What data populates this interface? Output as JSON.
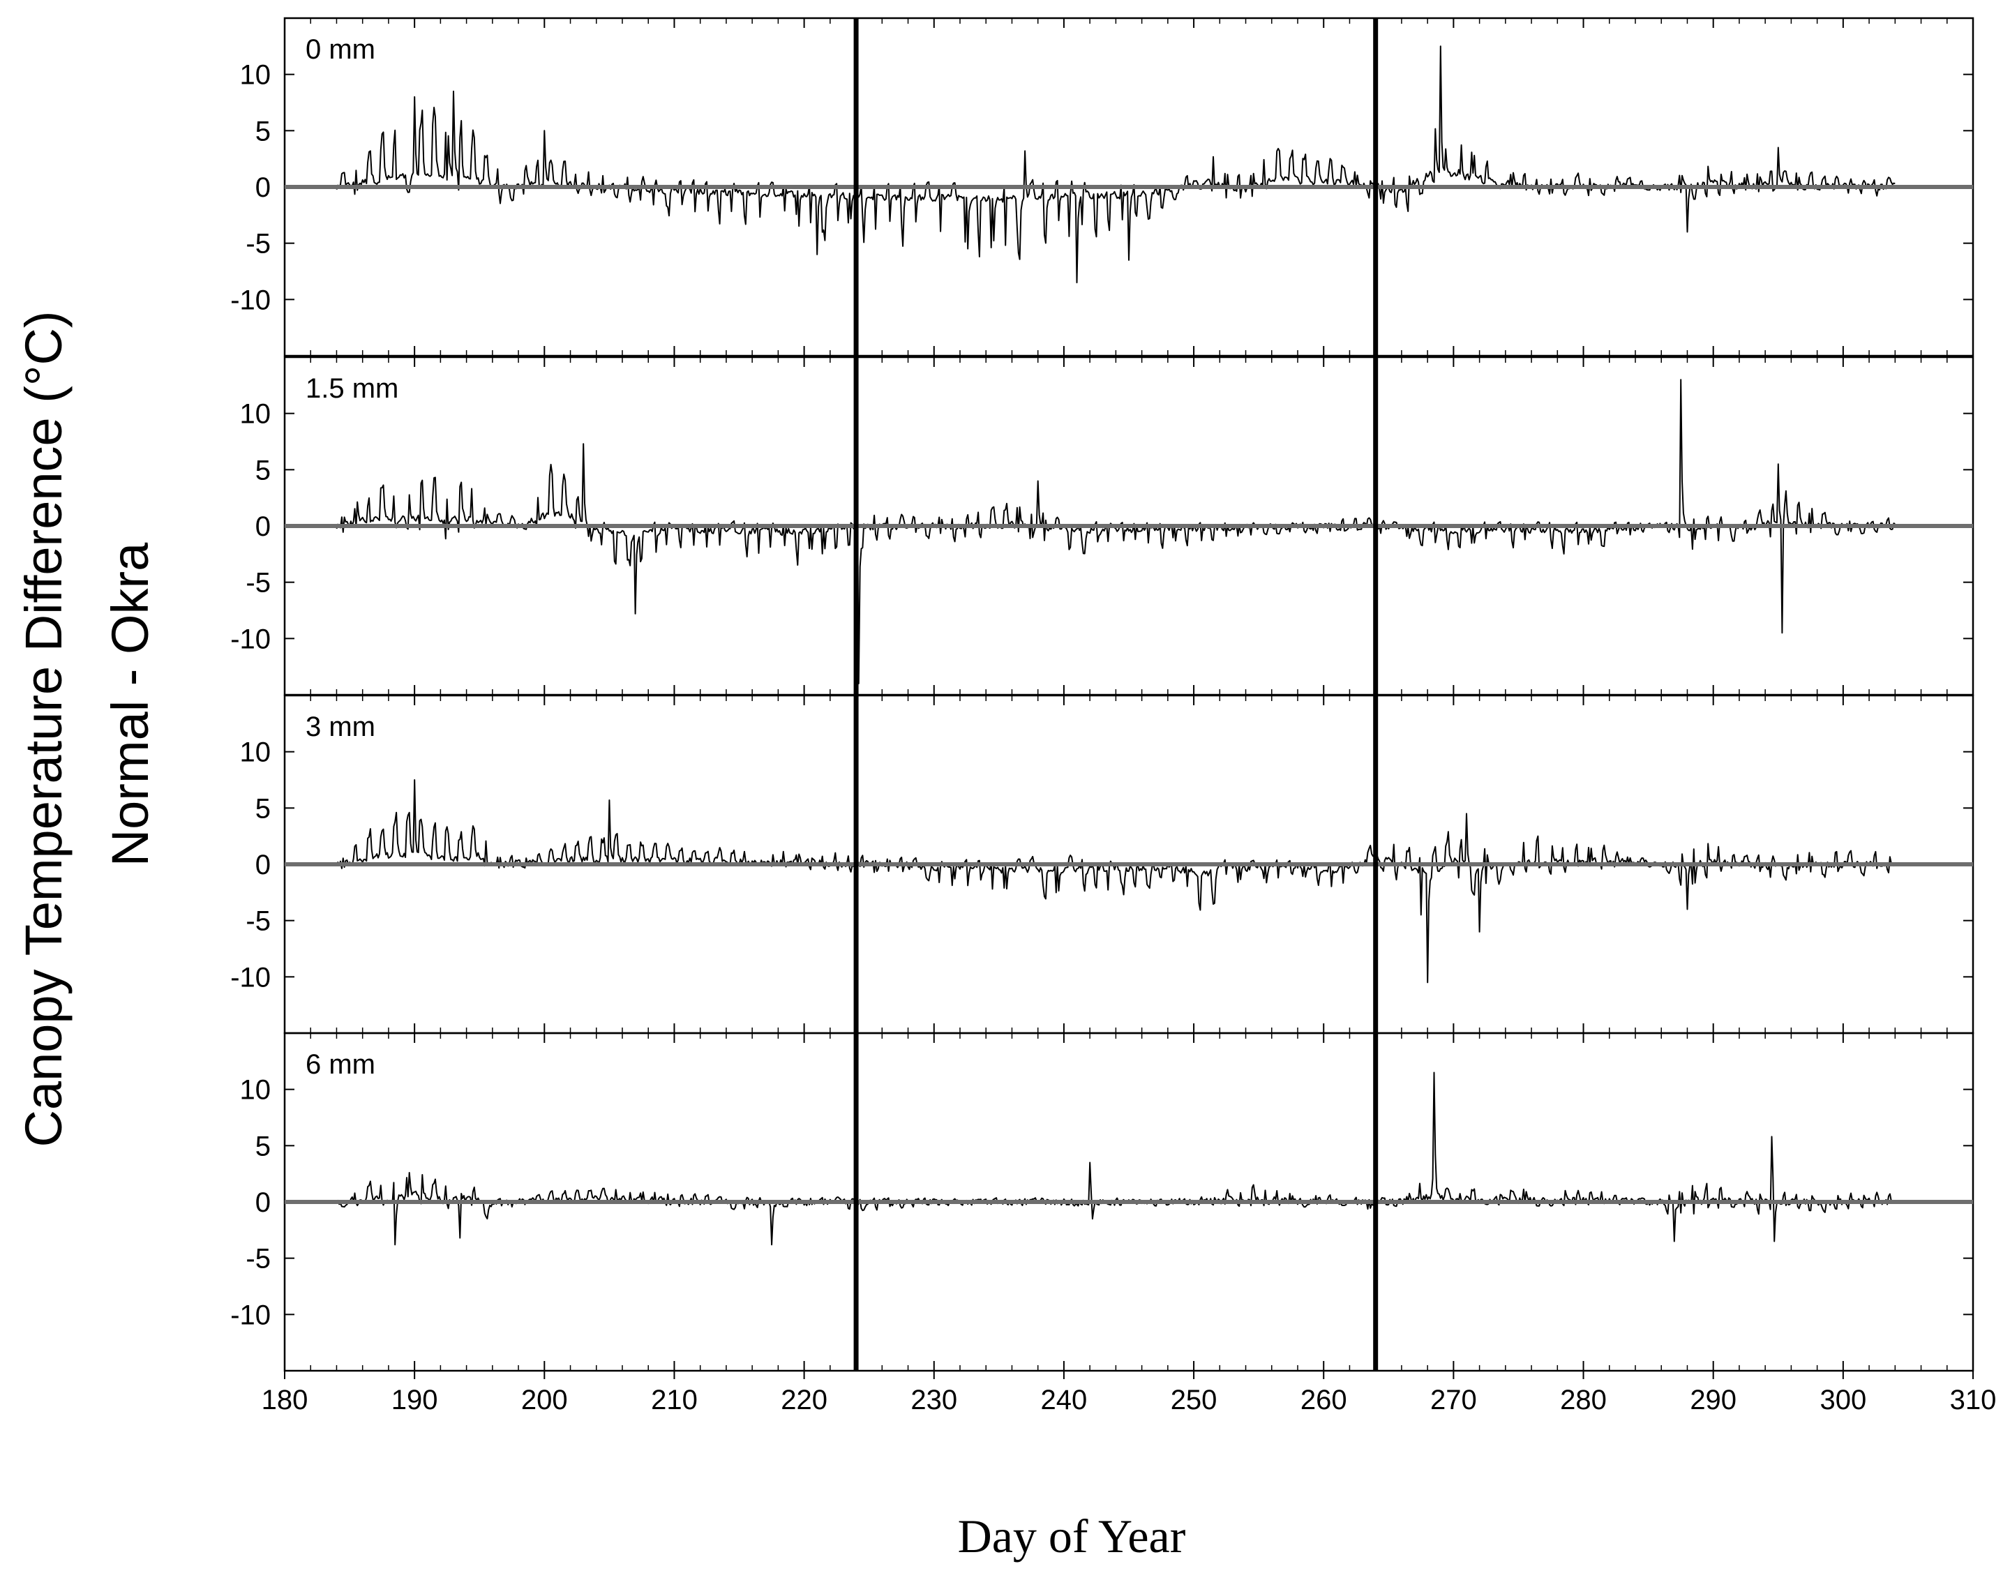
{
  "chart_data": {
    "type": "line",
    "ylabel_line1": "Canopy Temperature Difference (°C)",
    "ylabel_line2": "Normal - Okra",
    "xlabel": "Day of Year",
    "xlim": [
      180,
      310
    ],
    "ylim": [
      -15,
      15
    ],
    "x_ticks": [
      "180",
      "190",
      "200",
      "210",
      "220",
      "230",
      "240",
      "250",
      "260",
      "270",
      "280",
      "290",
      "300",
      "310"
    ],
    "y_ticks": [
      "10",
      "5",
      "0",
      "-5",
      "-10"
    ],
    "vertical_markers": [
      224,
      264
    ],
    "zero_line_color": "#6e6e6e",
    "series_color": "#000000",
    "panels": [
      {
        "label": "0 mm",
        "envelope": [
          [
            184,
            1,
            -2
          ],
          [
            186,
            4,
            -1
          ],
          [
            188,
            6,
            -1
          ],
          [
            190,
            7,
            -0.5
          ],
          [
            192,
            8.5,
            -1
          ],
          [
            194,
            7,
            -1
          ],
          [
            196,
            2,
            -2
          ],
          [
            200,
            3,
            -1
          ],
          [
            205,
            1.5,
            -1
          ],
          [
            210,
            1,
            -3
          ],
          [
            215,
            0.5,
            -4
          ],
          [
            220,
            0.5,
            -5
          ],
          [
            225,
            0.5,
            -6
          ],
          [
            230,
            0.5,
            -7
          ],
          [
            235,
            0.5,
            -7.5
          ],
          [
            240,
            1,
            -6
          ],
          [
            245,
            0.5,
            -5
          ],
          [
            249,
            0.3,
            -1
          ],
          [
            251,
            4.5,
            0
          ],
          [
            252,
            3,
            -2
          ],
          [
            254,
            1,
            -2
          ],
          [
            256,
            4.5,
            0
          ],
          [
            259,
            3.5,
            0
          ],
          [
            262,
            2.5,
            0
          ],
          [
            264,
            1.5,
            -1.5
          ],
          [
            266,
            1,
            -3.5
          ],
          [
            268,
            8,
            0
          ],
          [
            270,
            5.5,
            2
          ],
          [
            273,
            3,
            0
          ],
          [
            276,
            1,
            -1
          ],
          [
            280,
            1.5,
            -1
          ],
          [
            284,
            1,
            -0.5
          ],
          [
            286,
            0,
            0
          ],
          [
            288,
            2,
            -1.5
          ],
          [
            290,
            3,
            -1
          ],
          [
            292,
            1.5,
            -1
          ],
          [
            295,
            2,
            -1
          ],
          [
            300,
            1,
            -1
          ],
          [
            304,
            1,
            -1
          ]
        ],
        "spikes": [
          [
            190,
            8
          ],
          [
            193,
            8.5
          ],
          [
            200,
            5
          ],
          [
            221,
            -6
          ],
          [
            237,
            3.2
          ],
          [
            241,
            -8.5
          ],
          [
            245,
            -6.5
          ],
          [
            269,
            12.5
          ],
          [
            288,
            -4
          ],
          [
            295,
            3.5
          ]
        ]
      },
      {
        "label": "1.5 mm",
        "envelope": [
          [
            184,
            0.5,
            -1.5
          ],
          [
            186,
            3.5,
            -0.5
          ],
          [
            188,
            5,
            -0.5
          ],
          [
            190,
            5.5,
            -0.5
          ],
          [
            192,
            5,
            -2
          ],
          [
            194,
            5,
            -0.5
          ],
          [
            196,
            1.5,
            -0.5
          ],
          [
            198,
            1,
            -0.5
          ],
          [
            200,
            6,
            0
          ],
          [
            202,
            6.5,
            0
          ],
          [
            203,
            0.5,
            -1
          ],
          [
            205,
            0.5,
            -4
          ],
          [
            207,
            0.5,
            -5
          ],
          [
            210,
            0.5,
            -2
          ],
          [
            215,
            0.5,
            -3.5
          ],
          [
            220,
            0.5,
            -4
          ],
          [
            224,
            1.5,
            -2
          ],
          [
            230,
            1,
            -1.5
          ],
          [
            237,
            2.5,
            -2
          ],
          [
            240,
            0.5,
            -3
          ],
          [
            245,
            0.5,
            -2.5
          ],
          [
            250,
            0.5,
            -2
          ],
          [
            255,
            0.5,
            -1
          ],
          [
            260,
            0.5,
            -1
          ],
          [
            263,
            1,
            -1
          ],
          [
            266,
            0.3,
            -1.5
          ],
          [
            270,
            0.5,
            -2.5
          ],
          [
            275,
            0.5,
            -2.5
          ],
          [
            280,
            0.5,
            -3
          ],
          [
            284,
            0.5,
            -1
          ],
          [
            286,
            0,
            0
          ],
          [
            288,
            2,
            -3
          ],
          [
            291,
            1,
            -2
          ],
          [
            293,
            0.5,
            -1
          ],
          [
            295,
            4,
            -2
          ],
          [
            300,
            0.8,
            -1
          ],
          [
            304,
            0.8,
            -0.5
          ]
        ],
        "spikes": [
          [
            203,
            7.3
          ],
          [
            207,
            -7.8
          ],
          [
            224,
            11
          ],
          [
            224.2,
            -14
          ],
          [
            238,
            4
          ],
          [
            287.5,
            13
          ],
          [
            295,
            5.5
          ],
          [
            295.3,
            -9.5
          ]
        ]
      },
      {
        "label": "3 mm",
        "envelope": [
          [
            184,
            0.5,
            -1
          ],
          [
            186,
            3.5,
            0
          ],
          [
            188,
            5,
            0
          ],
          [
            190,
            5,
            0
          ],
          [
            192,
            4,
            0
          ],
          [
            194,
            3.5,
            0
          ],
          [
            195,
            5,
            0
          ],
          [
            196,
            1,
            -1
          ],
          [
            198,
            1,
            -0.5
          ],
          [
            200,
            1.5,
            0
          ],
          [
            203,
            2.5,
            0
          ],
          [
            205,
            3,
            0
          ],
          [
            210,
            2,
            0
          ],
          [
            215,
            1.5,
            0
          ],
          [
            220,
            1.5,
            -0.5
          ],
          [
            225,
            1,
            -1
          ],
          [
            230,
            0.5,
            -2
          ],
          [
            235,
            0.5,
            -3.5
          ],
          [
            240,
            1,
            -3.5
          ],
          [
            245,
            0.5,
            -3
          ],
          [
            248,
            0,
            -1.5
          ],
          [
            251,
            0,
            -6
          ],
          [
            252,
            0.5,
            -2
          ],
          [
            255,
            0.5,
            -2.5
          ],
          [
            258,
            0.5,
            -1
          ],
          [
            261,
            0,
            -3.5
          ],
          [
            263,
            1,
            0
          ],
          [
            264,
            4,
            0
          ],
          [
            266,
            2,
            -2.5
          ],
          [
            268,
            1,
            -8
          ],
          [
            270,
            4,
            -2
          ],
          [
            272,
            2,
            -5
          ],
          [
            274,
            2.5,
            -1
          ],
          [
            277,
            3,
            -1.5
          ],
          [
            280,
            2.5,
            -1
          ],
          [
            284,
            1,
            0
          ],
          [
            286,
            0,
            0
          ],
          [
            288,
            3,
            -4
          ],
          [
            290,
            3,
            -1
          ],
          [
            292,
            1,
            -0.5
          ],
          [
            294,
            1,
            -2
          ],
          [
            297,
            1.5,
            -1.5
          ],
          [
            300,
            1.5,
            -1.5
          ],
          [
            304,
            1.5,
            -1
          ]
        ],
        "spikes": [
          [
            190,
            7.5
          ],
          [
            205,
            5.7
          ],
          [
            268,
            -10.5
          ],
          [
            271,
            4.5
          ],
          [
            272,
            -6
          ],
          [
            288,
            -4
          ]
        ]
      },
      {
        "label": "6 mm",
        "envelope": [
          [
            184,
            0.5,
            -0.5
          ],
          [
            186,
            2,
            -0.5
          ],
          [
            188,
            2,
            -0.5
          ],
          [
            190,
            4.5,
            0
          ],
          [
            192,
            2,
            -1
          ],
          [
            194,
            2.5,
            -0.5
          ],
          [
            196,
            0.5,
            -2
          ],
          [
            198,
            0,
            -0.5
          ],
          [
            200,
            1,
            0
          ],
          [
            205,
            1.5,
            0
          ],
          [
            210,
            1,
            -0.5
          ],
          [
            215,
            0.5,
            -1
          ],
          [
            220,
            0.5,
            -0.5
          ],
          [
            225,
            0.5,
            -1
          ],
          [
            230,
            0.3,
            -0.3
          ],
          [
            240,
            0.3,
            -0.3
          ],
          [
            250,
            0.3,
            -0.3
          ],
          [
            254,
            2,
            -0.5
          ],
          [
            258,
            1,
            -0.5
          ],
          [
            262,
            0.5,
            -0.5
          ],
          [
            264,
            0.5,
            -1
          ],
          [
            266,
            0.3,
            -0.3
          ],
          [
            268,
            3,
            0
          ],
          [
            270,
            1.5,
            0
          ],
          [
            275,
            1.5,
            -0.5
          ],
          [
            280,
            1.5,
            -0.5
          ],
          [
            284,
            0.5,
            0
          ],
          [
            286,
            0,
            0
          ],
          [
            287,
            2,
            -3
          ],
          [
            290,
            2,
            -1
          ],
          [
            292,
            1.5,
            -0.5
          ],
          [
            294,
            1.5,
            -1.5
          ],
          [
            296,
            1,
            -1
          ],
          [
            300,
            1,
            -1
          ],
          [
            304,
            1,
            -0.5
          ]
        ],
        "spikes": [
          [
            188.5,
            -3.8
          ],
          [
            193.5,
            -3.2
          ],
          [
            217.5,
            -3.8
          ],
          [
            242,
            3.5
          ],
          [
            242.2,
            -1.5
          ],
          [
            268.5,
            11.5
          ],
          [
            287,
            -3.5
          ],
          [
            294.5,
            5.8
          ],
          [
            294.7,
            -3.5
          ]
        ]
      }
    ]
  }
}
